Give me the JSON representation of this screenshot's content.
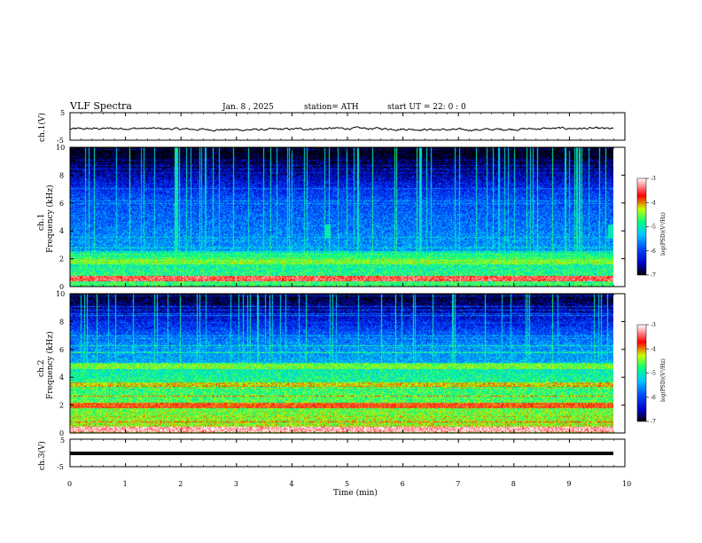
{
  "header": {
    "title": "VLF  Spectra",
    "date": "Jan.  8   , 2025",
    "station": "station= ATH",
    "start": "start  UT  =    22: 0   : 0"
  },
  "chart_data": [
    {
      "type": "line",
      "name": "ch1-waveform",
      "ylabel": "ch.1(V)",
      "ylim": [
        -5,
        5
      ],
      "xlim": [
        0,
        10
      ],
      "yticks": [
        "5",
        "-5"
      ]
    },
    {
      "type": "heatmap",
      "name": "ch1-spectrogram",
      "ylabel": "ch.1\nFrequency  (kHz)",
      "ylabel_channel": "ch.1",
      "ylabel_freq": "Frequency  (kHz)",
      "ylim": [
        0,
        10
      ],
      "xlim": [
        0,
        9.8
      ],
      "yticks": [
        "0",
        "2",
        "4",
        "6",
        "8",
        "10"
      ],
      "colorbar": {
        "label": "log(PSD)(V²/Hz)",
        "range": [
          -7,
          -3
        ],
        "ticks": [
          "-3",
          "-4",
          "-5",
          "-6",
          "-7"
        ]
      },
      "features": [
        {
          "type": "band",
          "freq_khz": 0.6,
          "level": -3.5
        },
        {
          "type": "band",
          "freq_khz": 1.8,
          "level": -4.5
        },
        {
          "type": "band",
          "freq_khz": 2.2,
          "level": -5.0
        },
        {
          "type": "burst",
          "time_min": 4.65,
          "freq_khz": 4.0
        },
        {
          "type": "burst",
          "time_min": 9.75,
          "freq_khz": 4.0
        }
      ]
    },
    {
      "type": "heatmap",
      "name": "ch2-spectrogram",
      "ylabel_channel": "ch.2",
      "ylabel_freq": "Frequency  (kHz)",
      "ylim": [
        0,
        10
      ],
      "xlim": [
        0,
        9.8
      ],
      "yticks": [
        "0",
        "2",
        "4",
        "6",
        "8",
        "10"
      ],
      "colorbar": {
        "label": "log(PSD)(V²/Hz)",
        "range": [
          -7,
          -3
        ],
        "ticks": [
          "-3",
          "-4",
          "-5",
          "-6",
          "-7"
        ]
      },
      "features": [
        {
          "type": "band",
          "freq_khz": 0.3,
          "level": -3.2
        },
        {
          "type": "band",
          "freq_khz": 2.0,
          "level": -3.8
        },
        {
          "type": "band",
          "freq_khz": 3.5,
          "level": -4.2
        },
        {
          "type": "band",
          "freq_khz": 4.8,
          "level": -4.5
        }
      ]
    },
    {
      "type": "line",
      "name": "ch3-waveform",
      "ylabel": "ch.3(V)",
      "ylim": [
        -5,
        5
      ],
      "xlim": [
        0,
        10
      ],
      "yticks": [
        "5",
        "-5"
      ],
      "values_constant_v": -1.3
    }
  ],
  "xaxis": {
    "label": "Time  (min)",
    "ticks": [
      "0",
      "1",
      "2",
      "3",
      "4",
      "5",
      "6",
      "7",
      "8",
      "9",
      "10"
    ]
  },
  "colors": {
    "line": "#000000",
    "colormap": [
      "#000000",
      "#0000c8",
      "#0050ff",
      "#00c8ff",
      "#00ff80",
      "#c8ff00",
      "#ff0000",
      "#ffffff"
    ]
  }
}
